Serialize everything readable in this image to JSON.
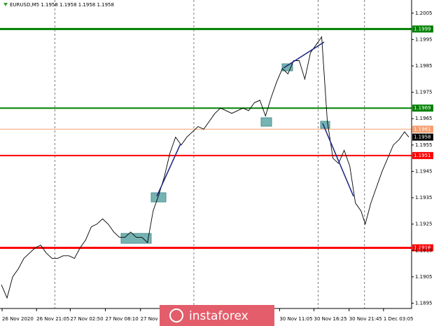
{
  "chart_data": {
    "type": "line",
    "title": "EURUSD,M5  1.1958 1.1958 1.1958 1.1958",
    "watermark": "instaforex",
    "x": [
      2,
      10,
      18,
      26,
      34,
      42,
      50,
      58,
      66,
      74,
      82,
      90,
      98,
      106,
      114,
      122,
      130,
      138,
      146,
      154,
      162,
      170,
      178,
      186,
      194,
      202,
      210,
      218,
      226,
      234,
      242,
      250,
      258,
      266,
      274,
      282,
      290,
      298,
      306,
      314,
      322,
      330,
      338,
      346,
      354,
      362,
      370,
      378,
      386,
      394,
      402,
      410,
      418,
      426,
      434,
      442,
      450,
      458,
      462,
      466,
      474,
      482,
      490,
      498,
      506,
      514,
      520,
      528,
      536,
      544,
      552,
      560,
      568,
      576,
      582
    ],
    "series": [
      {
        "color": "#000000",
        "values": [
          1.1902,
          1.1897,
          1.1905,
          1.1908,
          1.1912,
          1.1914,
          1.1916,
          1.1917,
          1.1914,
          1.1912,
          1.1912,
          1.1913,
          1.1913,
          1.1912,
          1.1916,
          1.1919,
          1.1924,
          1.1925,
          1.1927,
          1.1925,
          1.1922,
          1.192,
          1.192,
          1.1922,
          1.192,
          1.192,
          1.1918,
          1.193,
          1.1936,
          1.1943,
          1.1952,
          1.1958,
          1.1955,
          1.1958,
          1.196,
          1.1962,
          1.1961,
          1.1964,
          1.1967,
          1.1969,
          1.1968,
          1.1967,
          1.1968,
          1.1969,
          1.1968,
          1.1971,
          1.1972,
          1.1966,
          1.1973,
          1.1979,
          1.1984,
          1.1982,
          1.1987,
          1.1987,
          1.198,
          1.199,
          1.1993,
          1.1996,
          1.198,
          1.1964,
          1.195,
          1.1948,
          1.1953,
          1.1947,
          1.1933,
          1.193,
          1.1925,
          1.1933,
          1.1939,
          1.1945,
          1.195,
          1.1955,
          1.1957,
          1.196,
          1.1958
        ]
      }
    ],
    "xlim": [
      0,
      586
    ],
    "xticks": [
      {
        "value": 3,
        "label": "26 Nov 2020"
      },
      {
        "value": 52,
        "label": "26 Nov 21:05"
      },
      {
        "value": 100,
        "label": "27 Nov 02:50"
      },
      {
        "value": 150,
        "label": "27 Nov 08:10"
      },
      {
        "value": 200,
        "label": "27 Nov"
      },
      {
        "value": 398,
        "label": "30 Nov 11:05"
      },
      {
        "value": 447,
        "label": "30 Nov 16:25"
      },
      {
        "value": 497,
        "label": "30 Nov 21:45"
      },
      {
        "value": 546,
        "label": "1 Dec 03:05"
      }
    ],
    "ylim": [
      1.1893,
      1.201
    ],
    "yticks": [
      1.2005,
      1.1995,
      1.1985,
      1.1975,
      1.1965,
      1.1955,
      1.1945,
      1.1935,
      1.1925,
      1.1915,
      1.1905,
      1.1895
    ],
    "separators": [
      78,
      276,
      453,
      519
    ],
    "levels": [
      {
        "value": 1.1999,
        "color": "#008000",
        "width": 3
      },
      {
        "value": 1.1969,
        "color": "#008000",
        "width": 2
      },
      {
        "value": 1.1961,
        "color": "#f4a070",
        "width": 1
      },
      {
        "value": 1.1951,
        "color": "#ff0000",
        "width": 2
      },
      {
        "value": 1.1916,
        "color": "#ff0000",
        "width": 3
      }
    ],
    "last_price": 1.1958
  }
}
